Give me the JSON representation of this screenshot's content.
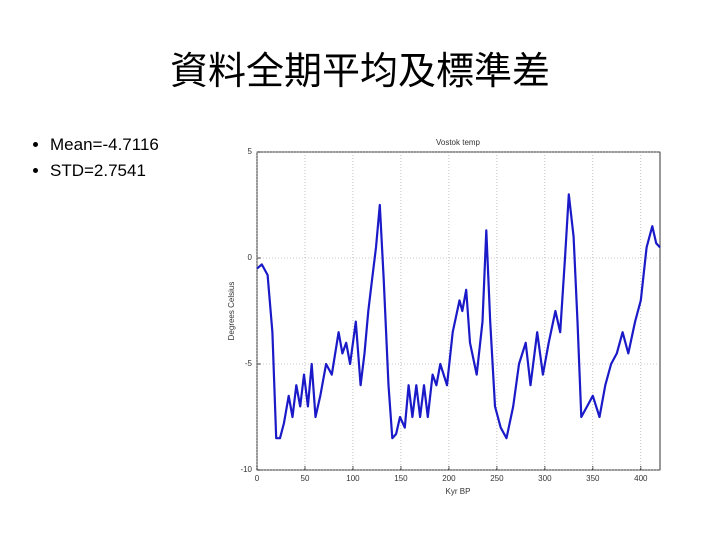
{
  "title": "資料全期平均及標準差",
  "bullets": [
    "Mean=-4.7116",
    "STD=2.7541"
  ],
  "chart_data": {
    "type": "line",
    "title": "Vostok temp",
    "xlabel": "Kyr BP",
    "ylabel": "Degrees Celsius",
    "x": [
      0,
      5,
      11,
      16,
      20,
      24,
      28,
      33,
      37,
      41,
      45,
      49,
      53,
      57,
      61,
      66,
      72,
      78,
      85,
      89,
      93,
      97,
      103,
      108,
      112,
      116,
      120,
      124,
      128,
      132,
      137,
      141,
      145,
      149,
      154,
      158,
      162,
      166,
      170,
      174,
      178,
      183,
      187,
      191,
      198,
      204,
      211,
      214,
      218,
      222,
      229,
      235,
      239,
      243,
      248,
      254,
      260,
      267,
      273,
      280,
      285,
      292,
      298,
      304,
      311,
      316,
      321,
      325,
      330,
      334,
      338,
      344,
      350,
      357,
      363,
      369,
      375,
      381,
      387,
      394,
      400,
      406,
      412,
      416,
      420
    ],
    "values": [
      -0.5,
      -0.3,
      -0.8,
      -3.5,
      -8.5,
      -8.5,
      -7.8,
      -6.5,
      -7.5,
      -6.0,
      -7.0,
      -5.5,
      -7.0,
      -5.0,
      -7.5,
      -6.5,
      -5.0,
      -5.5,
      -3.5,
      -4.5,
      -4.0,
      -5.0,
      -3.0,
      -6.0,
      -4.5,
      -2.5,
      -1.0,
      0.5,
      2.5,
      -1.0,
      -6.0,
      -8.5,
      -8.3,
      -7.5,
      -8.0,
      -6.0,
      -7.5,
      -6.0,
      -7.5,
      -6.0,
      -7.5,
      -5.5,
      -6.0,
      -5.0,
      -6.0,
      -3.5,
      -2.0,
      -2.5,
      -1.5,
      -4.0,
      -5.5,
      -3.0,
      1.3,
      -3.0,
      -7.0,
      -8.0,
      -8.5,
      -7.0,
      -5.0,
      -4.0,
      -6.0,
      -3.5,
      -5.5,
      -4.0,
      -2.5,
      -3.5,
      0.0,
      3.0,
      1.0,
      -3.0,
      -7.5,
      -7.0,
      -6.5,
      -7.5,
      -6.0,
      -5.0,
      -4.5,
      -3.5,
      -4.5,
      -3.0,
      -2.0,
      0.5,
      1.5,
      0.7,
      0.5
    ],
    "color": "#1a1ac8",
    "xlim": [
      0,
      420
    ],
    "xticks": [
      0,
      50,
      100,
      150,
      200,
      250,
      300,
      350,
      400
    ],
    "ylim": [
      -10,
      5
    ],
    "yticks": [
      -10,
      -5,
      0,
      5
    ],
    "grid": true
  }
}
